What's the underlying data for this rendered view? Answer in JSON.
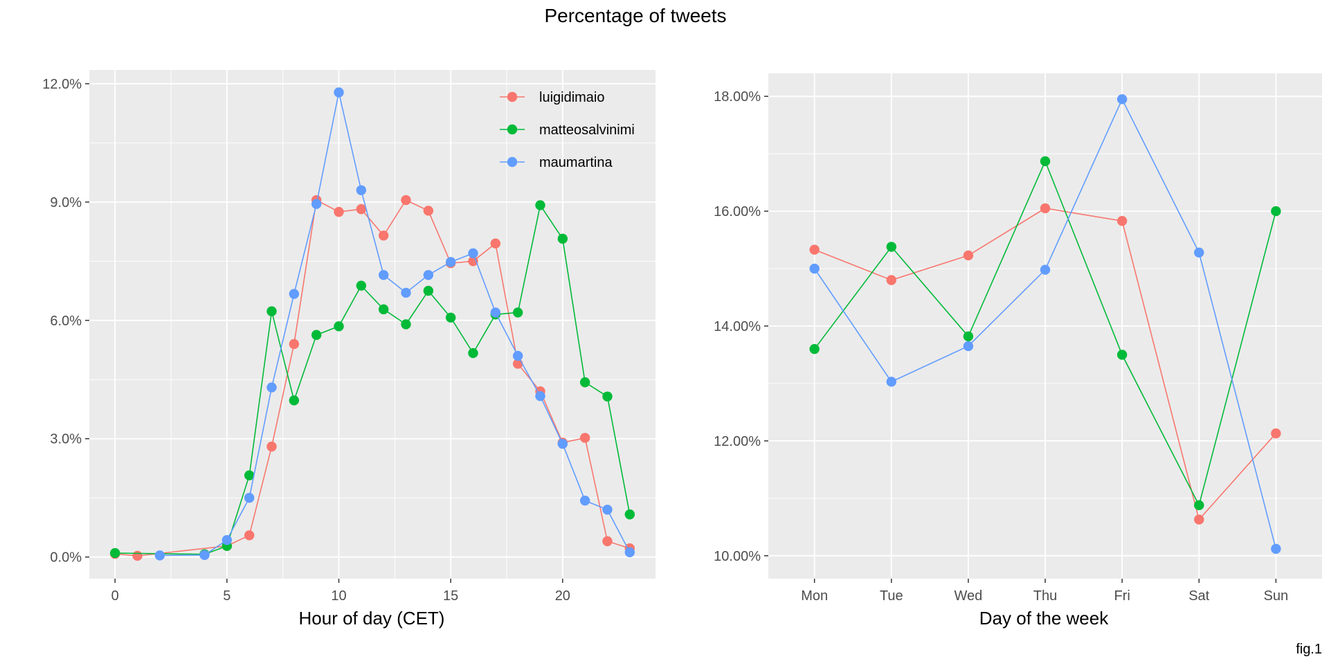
{
  "figure": {
    "title": "Percentage of tweets",
    "caption": "fig.1"
  },
  "colors": {
    "luigidimaio": "#F8766D",
    "matteosalvinimi": "#00BA38",
    "maumartina": "#619CFF",
    "panel_bg": "#EBEBEB",
    "grid": "#FFFFFF"
  },
  "legend": {
    "entries": [
      "luigidimaio",
      "matteosalvinimi",
      "maumartina"
    ],
    "placement": "top-right inside left panel"
  },
  "chart_data": [
    {
      "type": "line",
      "xlabel": "Hour of day (CET)",
      "ylabel": "",
      "x_ticks": [
        0,
        5,
        10,
        15,
        20
      ],
      "y_ticks": [
        0,
        3,
        6,
        9,
        12
      ],
      "y_tick_labels": [
        "0.0%",
        "3.0%",
        "6.0%",
        "9.0%",
        "12.0%"
      ],
      "xlim": [
        -1.15,
        24.15
      ],
      "ylim": [
        -0.55,
        12.35
      ],
      "grid": true,
      "series": [
        {
          "name": "luigidimaio",
          "x": [
            0,
            1,
            5,
            6,
            7,
            8,
            9,
            10,
            11,
            12,
            13,
            14,
            15,
            16,
            17,
            18,
            19,
            20,
            21,
            22,
            23
          ],
          "y": [
            0.08,
            0.03,
            0.28,
            0.55,
            2.8,
            5.4,
            9.05,
            8.75,
            8.82,
            8.15,
            9.05,
            8.78,
            7.45,
            7.5,
            7.95,
            4.9,
            4.2,
            2.9,
            3.02,
            0.4,
            0.22
          ]
        },
        {
          "name": "matteosalvinimi",
          "x": [
            0,
            4,
            5,
            6,
            7,
            8,
            9,
            10,
            11,
            12,
            13,
            14,
            15,
            16,
            17,
            18,
            19,
            20,
            21,
            22,
            23
          ],
          "y": [
            0.1,
            0.07,
            0.28,
            2.07,
            6.23,
            3.97,
            5.63,
            5.85,
            6.88,
            6.28,
            5.9,
            6.75,
            6.07,
            5.17,
            6.15,
            6.2,
            8.92,
            8.07,
            4.43,
            4.07,
            1.08
          ]
        },
        {
          "name": "maumartina",
          "x": [
            2,
            4,
            5,
            6,
            7,
            8,
            9,
            10,
            11,
            12,
            13,
            14,
            15,
            16,
            17,
            18,
            19,
            20,
            21,
            22,
            23
          ],
          "y": [
            0.04,
            0.05,
            0.43,
            1.5,
            4.3,
            6.67,
            8.95,
            11.78,
            9.3,
            7.15,
            6.7,
            7.15,
            7.48,
            7.7,
            6.2,
            5.1,
            4.08,
            2.87,
            1.43,
            1.2,
            0.12
          ]
        }
      ]
    },
    {
      "type": "line",
      "xlabel": "Day of the week",
      "ylabel": "",
      "categories": [
        "Mon",
        "Tue",
        "Wed",
        "Thu",
        "Fri",
        "Sat",
        "Sun"
      ],
      "y_ticks": [
        10,
        12,
        14,
        16,
        18
      ],
      "y_tick_labels": [
        "10.00%",
        "12.00%",
        "14.00%",
        "16.00%",
        "18.00%"
      ],
      "ylim": [
        9.6,
        18.4
      ],
      "grid": true,
      "series": [
        {
          "name": "luigidimaio",
          "values": [
            15.33,
            14.8,
            15.23,
            16.05,
            15.83,
            10.63,
            12.13
          ]
        },
        {
          "name": "matteosalvinimi",
          "values": [
            13.6,
            15.38,
            13.82,
            16.87,
            13.5,
            10.88,
            16.0
          ]
        },
        {
          "name": "maumartina",
          "values": [
            15.0,
            13.03,
            13.65,
            14.98,
            17.95,
            15.28,
            10.12
          ]
        }
      ]
    }
  ]
}
